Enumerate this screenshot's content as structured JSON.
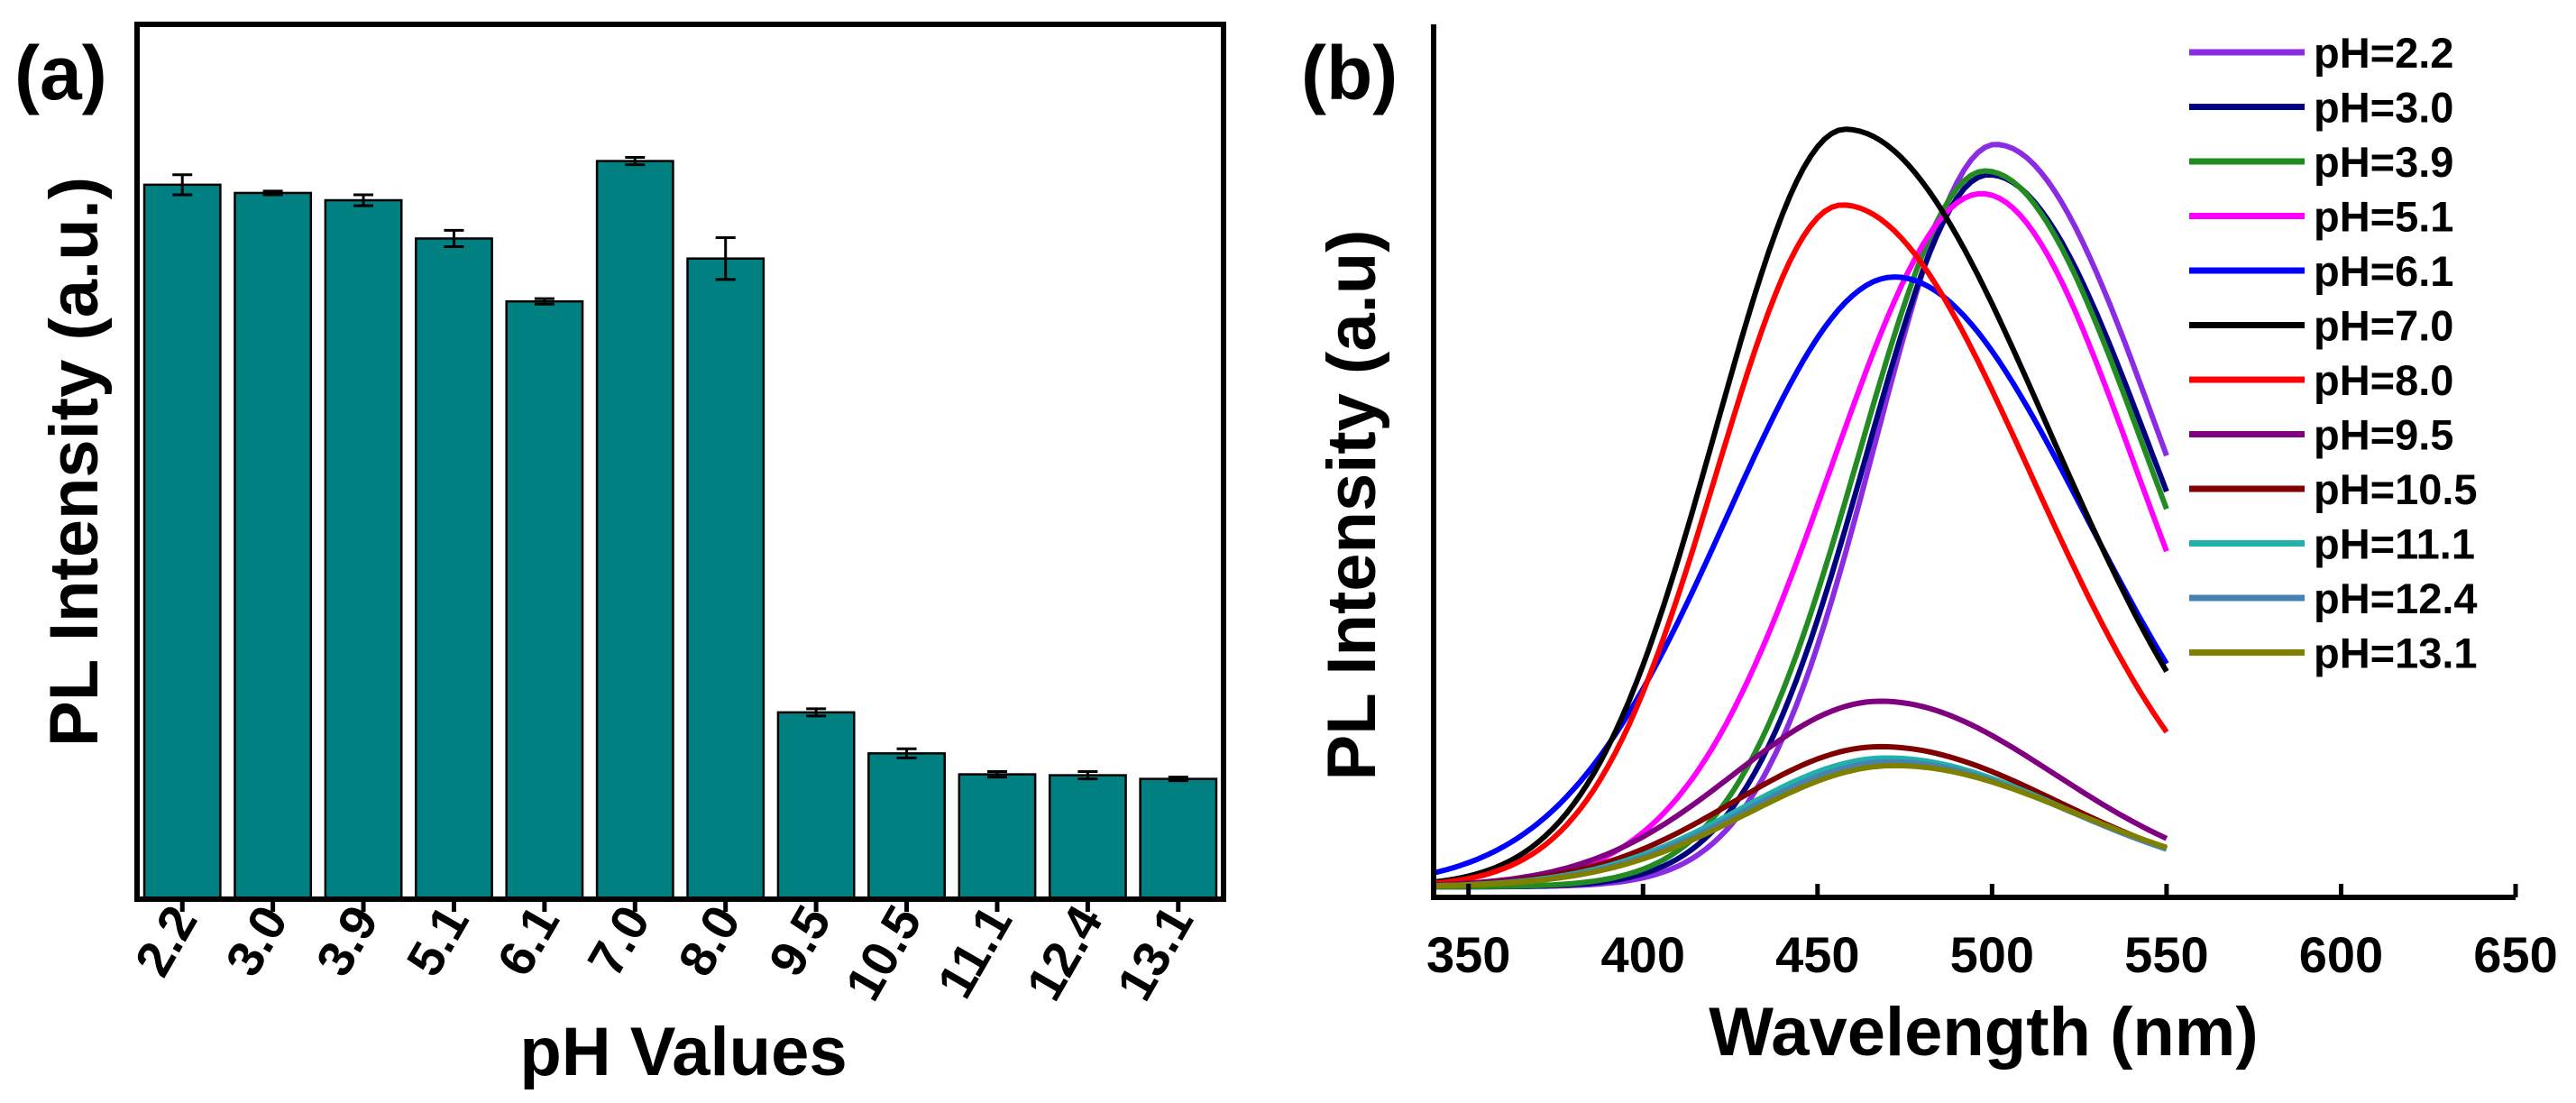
{
  "figure": {
    "panel_a_label": "(a)",
    "panel_b_label": "(b)"
  },
  "chart_data": [
    {
      "type": "bar",
      "panel": "(a)",
      "ylabel": "PL Intensity (a.u.)",
      "xlabel": "pH Values",
      "categories": [
        "2.2",
        "3.0",
        "3.9",
        "5.1",
        "6.1",
        "7.0",
        "8.0",
        "9.5",
        "10.5",
        "11.1",
        "12.4",
        "13.1"
      ],
      "values": [
        0.784,
        0.775,
        0.767,
        0.725,
        0.656,
        0.81,
        0.703,
        0.205,
        0.16,
        0.137,
        0.136,
        0.132
      ],
      "errors": [
        0.011,
        0.002,
        0.006,
        0.009,
        0.003,
        0.004,
        0.023,
        0.004,
        0.005,
        0.003,
        0.004,
        0.002
      ],
      "ylim": [
        0,
        0.96
      ],
      "bar_color": "#008080",
      "y_ticks_shown": false
    },
    {
      "type": "line",
      "panel": "(b)",
      "xlabel": "Wavelength (nm)",
      "ylabel": "PL Intensity (a.u)",
      "xlim": [
        340,
        650
      ],
      "xticks": [
        350,
        400,
        450,
        500,
        550,
        600,
        650
      ],
      "ylim": [
        0,
        1.0
      ],
      "legend_position": "top-right",
      "x_range": [
        340,
        550
      ],
      "series": [
        {
          "name": "pH=2.2",
          "color": "#8B2BE2",
          "peak": 501,
          "height": 0.98,
          "width_left": 34,
          "width_right": 47
        },
        {
          "name": "pH=3.0",
          "color": "#000080",
          "peak": 499,
          "height": 0.94,
          "width_left": 35,
          "width_right": 47
        },
        {
          "name": "pH=3.9",
          "color": "#228B22",
          "peak": 498,
          "height": 0.945,
          "width_left": 36,
          "width_right": 46
        },
        {
          "name": "pH=5.1",
          "color": "#FF00FF",
          "peak": 497,
          "height": 0.915,
          "width_left": 43,
          "width_right": 44
        },
        {
          "name": "pH=6.1",
          "color": "#0000FF",
          "peak": 472,
          "height": 0.805,
          "width_left": 48,
          "width_right": 55
        },
        {
          "name": "pH=7.0",
          "color": "#000000",
          "peak": 458,
          "height": 1.0,
          "width_left": 37,
          "width_right": 58
        },
        {
          "name": "pH=8.0",
          "color": "#FF0000",
          "peak": 457,
          "height": 0.9,
          "width_left": 36,
          "width_right": 54
        },
        {
          "name": "pH=9.5",
          "color": "#800080",
          "peak": 468,
          "height": 0.245,
          "width_left": 42,
          "width_right": 50
        },
        {
          "name": "pH=10.5",
          "color": "#800000",
          "peak": 468,
          "height": 0.185,
          "width_left": 42,
          "width_right": 51
        },
        {
          "name": "pH=11.1",
          "color": "#20B2AA",
          "peak": 470,
          "height": 0.17,
          "width_left": 42,
          "width_right": 51
        },
        {
          "name": "pH=12.4",
          "color": "#4682B4",
          "peak": 471,
          "height": 0.165,
          "width_left": 42,
          "width_right": 51
        },
        {
          "name": "pH=13.1",
          "color": "#808000",
          "peak": 472,
          "height": 0.16,
          "width_left": 42,
          "width_right": 52
        }
      ]
    }
  ]
}
